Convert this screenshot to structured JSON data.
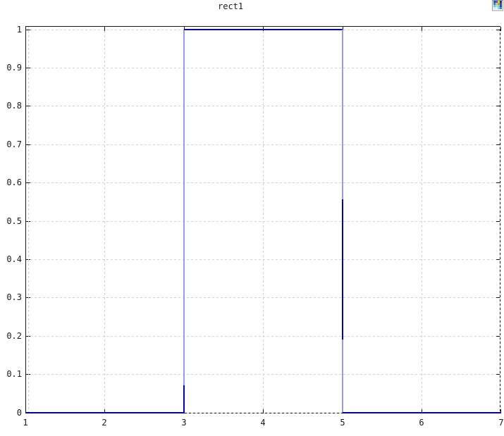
{
  "window": {
    "background": "#ffffff",
    "text_color": "#1a1a1a"
  },
  "header": {
    "title": "rect1",
    "corner_icon": "plot-thumbnail-icon"
  },
  "chart_data": {
    "type": "line",
    "title": "rect1",
    "subtitle": "",
    "xlabel": "",
    "ylabel": "",
    "xlim": [
      1,
      7
    ],
    "ylim": [
      0,
      1
    ],
    "grid": true,
    "legend": "none",
    "frame_color": "#1a1a1a",
    "grid_color_horizontal": "#d2d5ca",
    "grid_color_vertical": "#d7cdd5",
    "x_ticks": [
      {
        "label": "1",
        "value": 1
      },
      {
        "label": "2",
        "value": 2
      },
      {
        "label": "3",
        "value": 3
      },
      {
        "label": "4",
        "value": 4
      },
      {
        "label": "5",
        "value": 5
      },
      {
        "label": "6",
        "value": 6
      },
      {
        "label": "7",
        "value": 7
      }
    ],
    "y_ticks": [
      {
        "label": "0",
        "value": 0
      },
      {
        "label": "0.1",
        "value": 0.1
      },
      {
        "label": "0.2",
        "value": 0.2
      },
      {
        "label": "0.3",
        "value": 0.3
      },
      {
        "label": "0.4",
        "value": 0.4
      },
      {
        "label": "0.5",
        "value": 0.5
      },
      {
        "label": "0.6",
        "value": 0.6
      },
      {
        "label": "0.7",
        "value": 0.7
      },
      {
        "label": "0.8",
        "value": 0.8
      },
      {
        "label": "0.9",
        "value": 0.9
      },
      {
        "label": "1",
        "value": 1
      }
    ],
    "series": [
      {
        "name": "rect1",
        "color": "#0000b4",
        "edge_color": "#9b9bee",
        "points": [
          [
            1,
            0
          ],
          [
            3,
            0
          ],
          [
            3,
            1
          ],
          [
            5,
            1
          ],
          [
            5,
            0
          ],
          [
            7,
            0
          ]
        ]
      }
    ],
    "vertical_edge_dark_segments": [
      {
        "x": 3,
        "y_from": 0,
        "y_to": 0.07
      },
      {
        "x": 5,
        "y_from": 0.19,
        "y_to": 0.556
      }
    ]
  }
}
